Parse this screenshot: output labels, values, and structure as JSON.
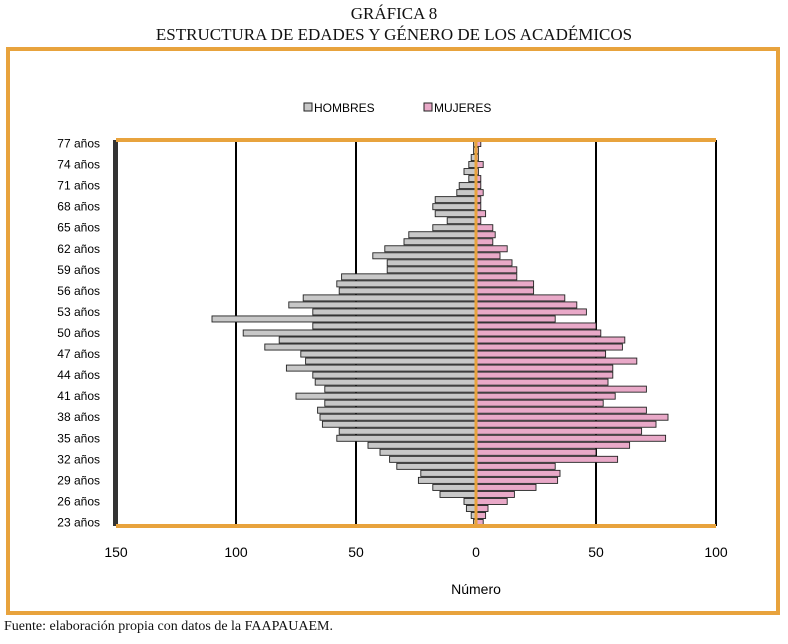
{
  "title": "GRÁFICA 8",
  "subtitle": "ESTRUCTURA DE EDADES Y GÉNERO DE LOS ACADÉMICOS",
  "source": "Fuente: elaboración propia con datos de la FAAPAUAEM.",
  "colors": {
    "frame": "#E8A33D",
    "men": "#C8C8C8",
    "women": "#E9A9C8",
    "axis": "#E8A33D"
  },
  "chart_data": {
    "type": "bar",
    "orientation": "horizontal",
    "layout": "population-pyramid",
    "xlabel": "Número",
    "ylabel": "",
    "xlim": [
      -150,
      100
    ],
    "xticks": [
      -150,
      -100,
      -50,
      0,
      50,
      100
    ],
    "xtick_labels": [
      "150",
      "100",
      "50",
      "0",
      "50",
      "100"
    ],
    "grid": "vertical",
    "legend": "top",
    "age_tick_labels": [
      "77 años",
      "74 años",
      "71 años",
      "68 años",
      "65 años",
      "62 años",
      "59 años",
      "56 años",
      "53 años",
      "50 años",
      "47 años",
      "44 años",
      "41 años",
      "38 años",
      "35 años",
      "32 años",
      "29 años",
      "26 años",
      "23 años"
    ],
    "categories": [
      23,
      24,
      25,
      26,
      27,
      28,
      29,
      30,
      31,
      32,
      33,
      34,
      35,
      36,
      37,
      38,
      39,
      40,
      41,
      42,
      43,
      44,
      45,
      46,
      47,
      48,
      49,
      50,
      51,
      52,
      53,
      54,
      55,
      56,
      57,
      58,
      59,
      60,
      61,
      62,
      63,
      64,
      65,
      66,
      67,
      68,
      69,
      70,
      71,
      72,
      73,
      74,
      75,
      76,
      77
    ],
    "series": [
      {
        "name": "HOMBRES",
        "values": [
          1,
          2,
          4,
          5,
          15,
          18,
          24,
          23,
          33,
          36,
          40,
          45,
          58,
          57,
          64,
          65,
          66,
          63,
          75,
          63,
          67,
          68,
          79,
          71,
          73,
          88,
          82,
          97,
          68,
          110,
          68,
          78,
          72,
          57,
          58,
          56,
          37,
          37,
          43,
          38,
          30,
          28,
          18,
          12,
          17,
          18,
          17,
          8,
          7,
          3,
          5,
          3,
          2,
          1,
          1
        ]
      },
      {
        "name": "MUJERES",
        "values": [
          3,
          4,
          5,
          13,
          16,
          25,
          34,
          35,
          33,
          59,
          50,
          64,
          79,
          69,
          75,
          80,
          71,
          53,
          58,
          71,
          55,
          57,
          57,
          67,
          54,
          61,
          62,
          52,
          50,
          33,
          46,
          42,
          37,
          24,
          24,
          17,
          17,
          15,
          10,
          13,
          7,
          8,
          7,
          2,
          4,
          2,
          2,
          3,
          2,
          2,
          1,
          3,
          1,
          1,
          2
        ]
      }
    ]
  }
}
